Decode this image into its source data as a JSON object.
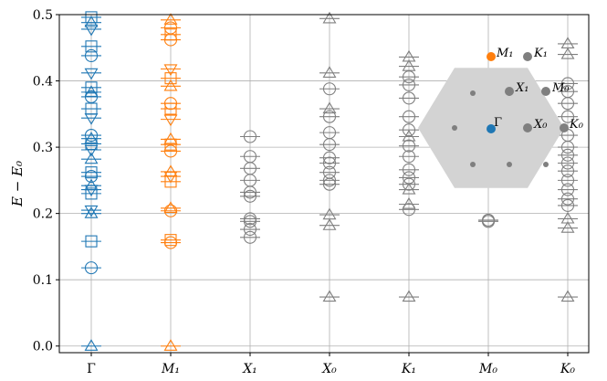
{
  "chart_data": {
    "type": "scatter",
    "title": "",
    "xlabel": "",
    "ylabel": "E − E₀",
    "ylim": [
      -0.01,
      0.5
    ],
    "yticks": [
      0.0,
      0.1,
      0.2,
      0.3,
      0.4,
      0.5
    ],
    "ytick_labels": [
      "0.0",
      "0.1",
      "0.2",
      "0.3",
      "0.4",
      "0.5"
    ],
    "grid": true,
    "categories": [
      "Γ",
      "M₁",
      "X₁",
      "X₀",
      "K₁",
      "M₀",
      "K₀"
    ],
    "markers_open": true,
    "colors": {
      "gamma": "#1f77b4",
      "m1": "#ff7f0e",
      "other": "#7f7f7f",
      "hexagon": "#d3d3d3",
      "grid": "#b0b0b0"
    },
    "series": [
      {
        "category": "Γ",
        "color": "#1f77b4",
        "points": [
          {
            "y": 0.0,
            "m": "triangle-up"
          },
          {
            "y": 0.118,
            "m": "circle"
          },
          {
            "y": 0.158,
            "m": "square"
          },
          {
            "y": 0.2,
            "m": "triangle-up"
          },
          {
            "y": 0.205,
            "m": "triangle-down"
          },
          {
            "y": 0.23,
            "m": "square"
          },
          {
            "y": 0.236,
            "m": "triangle-down"
          },
          {
            "y": 0.242,
            "m": "triangle-up"
          },
          {
            "y": 0.256,
            "m": "circle"
          },
          {
            "y": 0.262,
            "m": "square"
          },
          {
            "y": 0.282,
            "m": "triangle-up"
          },
          {
            "y": 0.296,
            "m": "triangle-down"
          },
          {
            "y": 0.305,
            "m": "square"
          },
          {
            "y": 0.313,
            "m": "triangle-up"
          },
          {
            "y": 0.318,
            "m": "circle"
          },
          {
            "y": 0.344,
            "m": "triangle-down"
          },
          {
            "y": 0.358,
            "m": "square"
          },
          {
            "y": 0.376,
            "m": "circle"
          },
          {
            "y": 0.383,
            "m": "triangle-up"
          },
          {
            "y": 0.39,
            "m": "square"
          },
          {
            "y": 0.412,
            "m": "triangle-down"
          },
          {
            "y": 0.438,
            "m": "circle"
          },
          {
            "y": 0.452,
            "m": "square"
          },
          {
            "y": 0.478,
            "m": "triangle-down"
          },
          {
            "y": 0.488,
            "m": "triangle-up"
          },
          {
            "y": 0.496,
            "m": "square"
          }
        ]
      },
      {
        "category": "M₁",
        "color": "#ff7f0e",
        "points": [
          {
            "y": 0.0,
            "m": "triangle-up"
          },
          {
            "y": 0.156,
            "m": "circle"
          },
          {
            "y": 0.16,
            "m": "square"
          },
          {
            "y": 0.204,
            "m": "circle"
          },
          {
            "y": 0.208,
            "m": "triangle-up"
          },
          {
            "y": 0.248,
            "m": "square"
          },
          {
            "y": 0.256,
            "m": "triangle-down"
          },
          {
            "y": 0.263,
            "m": "triangle-up"
          },
          {
            "y": 0.294,
            "m": "circle"
          },
          {
            "y": 0.304,
            "m": "square"
          },
          {
            "y": 0.312,
            "m": "triangle-up"
          },
          {
            "y": 0.342,
            "m": "triangle-down"
          },
          {
            "y": 0.358,
            "m": "square"
          },
          {
            "y": 0.366,
            "m": "circle"
          },
          {
            "y": 0.392,
            "m": "triangle-up"
          },
          {
            "y": 0.404,
            "m": "square"
          },
          {
            "y": 0.418,
            "m": "triangle-down"
          },
          {
            "y": 0.462,
            "m": "circle"
          },
          {
            "y": 0.47,
            "m": "square"
          },
          {
            "y": 0.48,
            "m": "circle"
          },
          {
            "y": 0.492,
            "m": "triangle-up"
          }
        ]
      },
      {
        "category": "X₁",
        "color": "#7f7f7f",
        "points": [
          {
            "y": 0.164,
            "m": "circle"
          },
          {
            "y": 0.176,
            "m": "circle"
          },
          {
            "y": 0.188,
            "m": "circle"
          },
          {
            "y": 0.192,
            "m": "circle"
          },
          {
            "y": 0.226,
            "m": "circle"
          },
          {
            "y": 0.232,
            "m": "circle"
          },
          {
            "y": 0.25,
            "m": "circle"
          },
          {
            "y": 0.268,
            "m": "circle"
          },
          {
            "y": 0.286,
            "m": "circle"
          },
          {
            "y": 0.316,
            "m": "circle"
          }
        ]
      },
      {
        "category": "X₀",
        "color": "#7f7f7f",
        "points": [
          {
            "y": 0.074,
            "m": "triangle-up"
          },
          {
            "y": 0.182,
            "m": "triangle-up"
          },
          {
            "y": 0.198,
            "m": "triangle-up"
          },
          {
            "y": 0.244,
            "m": "circle"
          },
          {
            "y": 0.25,
            "m": "circle"
          },
          {
            "y": 0.262,
            "m": "circle"
          },
          {
            "y": 0.276,
            "m": "circle"
          },
          {
            "y": 0.284,
            "m": "circle"
          },
          {
            "y": 0.304,
            "m": "circle"
          },
          {
            "y": 0.322,
            "m": "circle"
          },
          {
            "y": 0.346,
            "m": "circle"
          },
          {
            "y": 0.358,
            "m": "triangle-up"
          },
          {
            "y": 0.388,
            "m": "circle"
          },
          {
            "y": 0.412,
            "m": "triangle-up"
          },
          {
            "y": 0.494,
            "m": "triangle-up"
          }
        ]
      },
      {
        "category": "K₁",
        "color": "#7f7f7f",
        "points": [
          {
            "y": 0.074,
            "m": "triangle-up"
          },
          {
            "y": 0.206,
            "m": "circle"
          },
          {
            "y": 0.214,
            "m": "triangle-up"
          },
          {
            "y": 0.236,
            "m": "triangle-up"
          },
          {
            "y": 0.244,
            "m": "circle"
          },
          {
            "y": 0.254,
            "m": "circle"
          },
          {
            "y": 0.266,
            "m": "circle"
          },
          {
            "y": 0.286,
            "m": "circle"
          },
          {
            "y": 0.302,
            "m": "circle"
          },
          {
            "y": 0.316,
            "m": "triangle-up"
          },
          {
            "y": 0.326,
            "m": "circle"
          },
          {
            "y": 0.346,
            "m": "circle"
          },
          {
            "y": 0.374,
            "m": "circle"
          },
          {
            "y": 0.394,
            "m": "circle"
          },
          {
            "y": 0.406,
            "m": "circle"
          },
          {
            "y": 0.422,
            "m": "triangle-up"
          },
          {
            "y": 0.436,
            "m": "triangle-up"
          }
        ]
      },
      {
        "category": "M₀",
        "color": "#7f7f7f",
        "points": [
          {
            "y": 0.188,
            "m": "circle"
          },
          {
            "y": 0.19,
            "m": "circle"
          }
        ]
      },
      {
        "category": "K₀",
        "color": "#7f7f7f",
        "points": [
          {
            "y": 0.074,
            "m": "triangle-up"
          },
          {
            "y": 0.178,
            "m": "triangle-up"
          },
          {
            "y": 0.192,
            "m": "triangle-up"
          },
          {
            "y": 0.212,
            "m": "circle"
          },
          {
            "y": 0.222,
            "m": "circle"
          },
          {
            "y": 0.236,
            "m": "circle"
          },
          {
            "y": 0.25,
            "m": "circle"
          },
          {
            "y": 0.264,
            "m": "circle"
          },
          {
            "y": 0.276,
            "m": "circle"
          },
          {
            "y": 0.288,
            "m": "circle"
          },
          {
            "y": 0.3,
            "m": "circle"
          },
          {
            "y": 0.318,
            "m": "circle"
          },
          {
            "y": 0.346,
            "m": "circle"
          },
          {
            "y": 0.366,
            "m": "circle"
          },
          {
            "y": 0.384,
            "m": "circle"
          },
          {
            "y": 0.396,
            "m": "circle"
          },
          {
            "y": 0.44,
            "m": "triangle-up"
          },
          {
            "y": 0.456,
            "m": "triangle-up"
          }
        ]
      }
    ],
    "inset": {
      "shape": "hexagon",
      "labels": [
        {
          "text": "Γ",
          "point": "gamma",
          "color": "#1f77b4"
        },
        {
          "text": "M₁",
          "point": "m1",
          "color": "#ff7f0e"
        },
        {
          "text": "K₁",
          "point": "k1",
          "color": "#7f7f7f"
        },
        {
          "text": "X₁",
          "point": "x1",
          "color": "#7f7f7f"
        },
        {
          "text": "M₀",
          "point": "m0",
          "color": "#7f7f7f"
        },
        {
          "text": "X₀",
          "point": "x0",
          "color": "#7f7f7f"
        },
        {
          "text": "K₀",
          "point": "k0",
          "color": "#7f7f7f"
        }
      ]
    }
  }
}
